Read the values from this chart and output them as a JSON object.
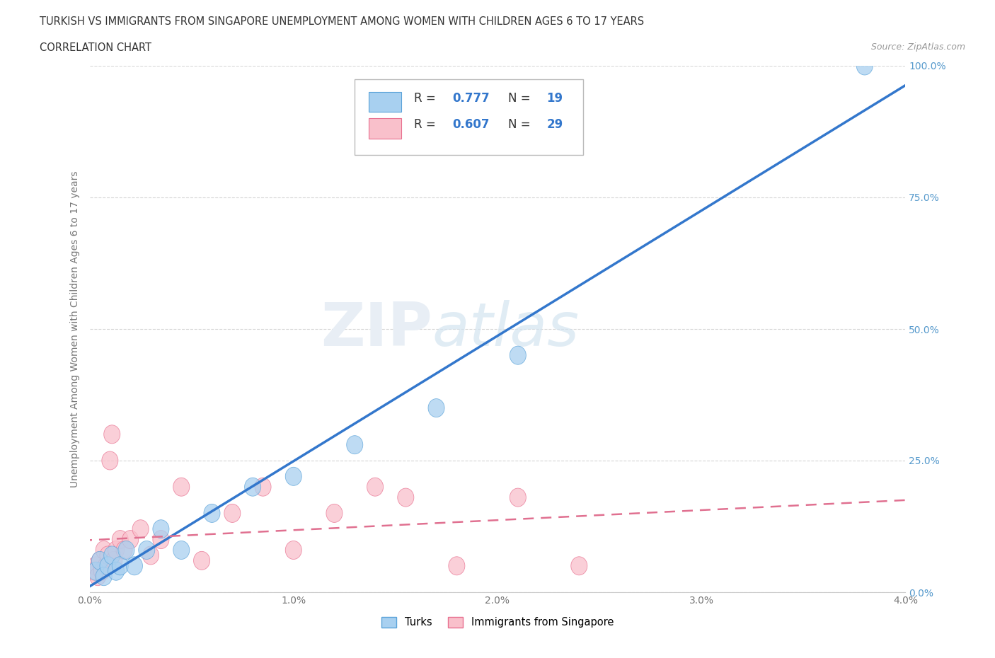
{
  "title_line1": "TURKISH VS IMMIGRANTS FROM SINGAPORE UNEMPLOYMENT AMONG WOMEN WITH CHILDREN AGES 6 TO 17 YEARS",
  "title_line2": "CORRELATION CHART",
  "source": "Source: ZipAtlas.com",
  "ylabel": "Unemployment Among Women with Children Ages 6 to 17 years",
  "watermark_zip": "ZIP",
  "watermark_atlas": "atlas",
  "xlim": [
    0.0,
    4.0
  ],
  "ylim": [
    0.0,
    100.0
  ],
  "xticks": [
    0.0,
    1.0,
    2.0,
    3.0,
    4.0
  ],
  "xtick_labels": [
    "0.0%",
    "1.0%",
    "2.0%",
    "3.0%",
    "4.0%"
  ],
  "yticks": [
    0,
    25,
    50,
    75,
    100
  ],
  "ytick_labels": [
    "0.0%",
    "25.0%",
    "50.0%",
    "75.0%",
    "100.0%"
  ],
  "turks_color": "#A8D0F0",
  "turks_edge_color": "#5BA3D9",
  "singapore_color": "#F9C0CB",
  "singapore_edge_color": "#E87090",
  "turks_R": 0.777,
  "turks_N": 19,
  "singapore_R": 0.607,
  "singapore_N": 29,
  "turks_x": [
    0.03,
    0.05,
    0.07,
    0.09,
    0.11,
    0.13,
    0.15,
    0.18,
    0.22,
    0.28,
    0.35,
    0.45,
    0.6,
    0.8,
    1.0,
    1.3,
    1.7,
    2.1,
    3.8
  ],
  "turks_y": [
    4,
    6,
    3,
    5,
    7,
    4,
    5,
    8,
    5,
    8,
    12,
    8,
    15,
    20,
    22,
    28,
    35,
    45,
    100
  ],
  "singapore_x": [
    0.02,
    0.03,
    0.04,
    0.05,
    0.06,
    0.07,
    0.08,
    0.09,
    0.1,
    0.11,
    0.12,
    0.13,
    0.15,
    0.17,
    0.2,
    0.25,
    0.3,
    0.35,
    0.45,
    0.55,
    0.7,
    0.85,
    1.0,
    1.2,
    1.4,
    1.55,
    1.8,
    2.1,
    2.4
  ],
  "singapore_y": [
    4,
    5,
    3,
    6,
    4,
    8,
    5,
    7,
    25,
    30,
    6,
    8,
    10,
    8,
    10,
    12,
    7,
    10,
    20,
    6,
    15,
    20,
    8,
    15,
    20,
    18,
    5,
    18,
    5
  ],
  "bg_color": "#FFFFFF",
  "grid_color": "#CCCCCC",
  "title_color": "#333333",
  "axis_label_color": "#777777",
  "tick_color": "#5599CC",
  "turks_line_color": "#3377CC",
  "singapore_line_color": "#E07090",
  "legend_box_color": "#F5F5F5",
  "legend_border_color": "#CCCCCC"
}
